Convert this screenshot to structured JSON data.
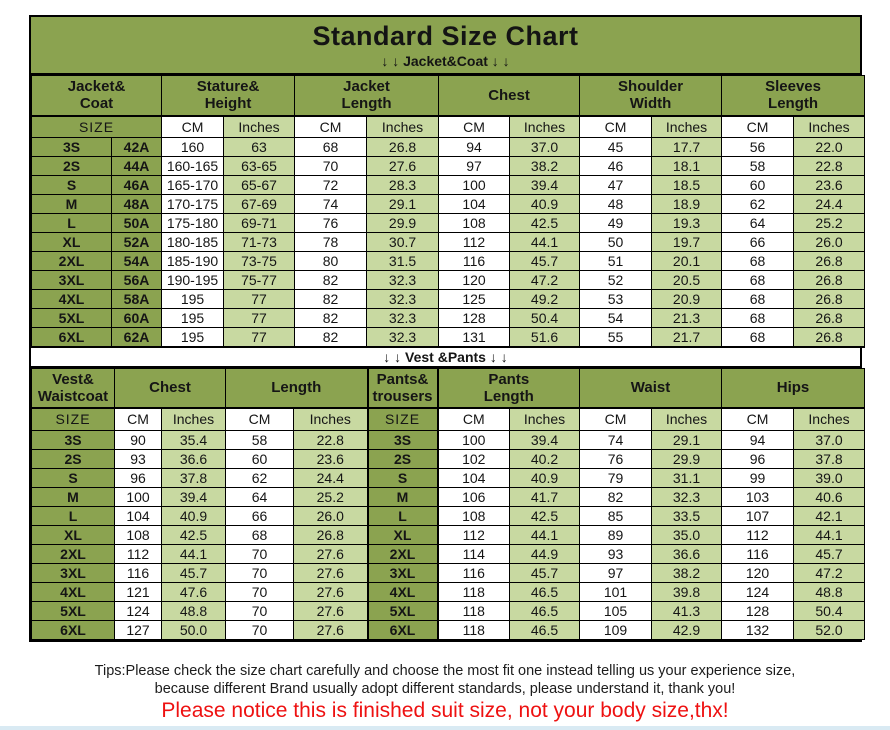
{
  "page": {
    "title": "Standard Size Chart",
    "jacket_divider": "↓ ↓  Jacket&Coat ↓ ↓",
    "vest_divider": "↓ ↓  Vest &Pants ↓ ↓",
    "tips_line1": "Tips:Please check the size chart carefully and choose the most fit one instead telling us your experience size,",
    "tips_line2": "because different Brand usually adopt different standards, please understand it, thank you!",
    "notice": "Please notice this is finished suit size, not your body size,thx!"
  },
  "colors": {
    "header_green": "#8ba350",
    "cell_green": "#c8d9a1",
    "notice_red": "#ee1111",
    "bottom_strip_blue": "#d9eaf3"
  },
  "jacket_table": {
    "groups": [
      "Jacket&\nCoat",
      "Stature&\nHeight",
      "Jacket\nLength",
      "Chest",
      "Shoulder\nWidth",
      "Sleeves\nLength"
    ],
    "subheader": [
      "SIZE",
      "CM",
      "Inches",
      "CM",
      "Inches",
      "CM",
      "Inches",
      "CM",
      "Inches",
      "CM",
      "Inches"
    ],
    "rows": [
      [
        "3S",
        "42A",
        "160",
        "63",
        "68",
        "26.8",
        "94",
        "37.0",
        "45",
        "17.7",
        "56",
        "22.0"
      ],
      [
        "2S",
        "44A",
        "160-165",
        "63-65",
        "70",
        "27.6",
        "97",
        "38.2",
        "46",
        "18.1",
        "58",
        "22.8"
      ],
      [
        "S",
        "46A",
        "165-170",
        "65-67",
        "72",
        "28.3",
        "100",
        "39.4",
        "47",
        "18.5",
        "60",
        "23.6"
      ],
      [
        "M",
        "48A",
        "170-175",
        "67-69",
        "74",
        "29.1",
        "104",
        "40.9",
        "48",
        "18.9",
        "62",
        "24.4"
      ],
      [
        "L",
        "50A",
        "175-180",
        "69-71",
        "76",
        "29.9",
        "108",
        "42.5",
        "49",
        "19.3",
        "64",
        "25.2"
      ],
      [
        "XL",
        "52A",
        "180-185",
        "71-73",
        "78",
        "30.7",
        "112",
        "44.1",
        "50",
        "19.7",
        "66",
        "26.0"
      ],
      [
        "2XL",
        "54A",
        "185-190",
        "73-75",
        "80",
        "31.5",
        "116",
        "45.7",
        "51",
        "20.1",
        "68",
        "26.8"
      ],
      [
        "3XL",
        "56A",
        "190-195",
        "75-77",
        "82",
        "32.3",
        "120",
        "47.2",
        "52",
        "20.5",
        "68",
        "26.8"
      ],
      [
        "4XL",
        "58A",
        "195",
        "77",
        "82",
        "32.3",
        "125",
        "49.2",
        "53",
        "20.9",
        "68",
        "26.8"
      ],
      [
        "5XL",
        "60A",
        "195",
        "77",
        "82",
        "32.3",
        "128",
        "50.4",
        "54",
        "21.3",
        "68",
        "26.8"
      ],
      [
        "6XL",
        "62A",
        "195",
        "77",
        "82",
        "32.3",
        "131",
        "51.6",
        "55",
        "21.7",
        "68",
        "26.8"
      ]
    ]
  },
  "vest_table": {
    "groups": [
      "Vest&\nWaistcoat",
      "Chest",
      "Length",
      "Pants&\ntrousers",
      "Pants\nLength",
      "Waist",
      "Hips"
    ],
    "subheader": [
      "SIZE",
      "CM",
      "Inches",
      "CM",
      "Inches",
      "SIZE",
      "CM",
      "Inches",
      "CM",
      "Inches",
      "CM",
      "Inches"
    ],
    "rows": [
      [
        "3S",
        "90",
        "35.4",
        "58",
        "22.8",
        "3S",
        "100",
        "39.4",
        "74",
        "29.1",
        "94",
        "37.0"
      ],
      [
        "2S",
        "93",
        "36.6",
        "60",
        "23.6",
        "2S",
        "102",
        "40.2",
        "76",
        "29.9",
        "96",
        "37.8"
      ],
      [
        "S",
        "96",
        "37.8",
        "62",
        "24.4",
        "S",
        "104",
        "40.9",
        "79",
        "31.1",
        "99",
        "39.0"
      ],
      [
        "M",
        "100",
        "39.4",
        "64",
        "25.2",
        "M",
        "106",
        "41.7",
        "82",
        "32.3",
        "103",
        "40.6"
      ],
      [
        "L",
        "104",
        "40.9",
        "66",
        "26.0",
        "L",
        "108",
        "42.5",
        "85",
        "33.5",
        "107",
        "42.1"
      ],
      [
        "XL",
        "108",
        "42.5",
        "68",
        "26.8",
        "XL",
        "112",
        "44.1",
        "89",
        "35.0",
        "112",
        "44.1"
      ],
      [
        "2XL",
        "112",
        "44.1",
        "70",
        "27.6",
        "2XL",
        "114",
        "44.9",
        "93",
        "36.6",
        "116",
        "45.7"
      ],
      [
        "3XL",
        "116",
        "45.7",
        "70",
        "27.6",
        "3XL",
        "116",
        "45.7",
        "97",
        "38.2",
        "120",
        "47.2"
      ],
      [
        "4XL",
        "121",
        "47.6",
        "70",
        "27.6",
        "4XL",
        "118",
        "46.5",
        "101",
        "39.8",
        "124",
        "48.8"
      ],
      [
        "5XL",
        "124",
        "48.8",
        "70",
        "27.6",
        "5XL",
        "118",
        "46.5",
        "105",
        "41.3",
        "128",
        "50.4"
      ],
      [
        "6XL",
        "127",
        "50.0",
        "70",
        "27.6",
        "6XL",
        "118",
        "46.5",
        "109",
        "42.9",
        "132",
        "52.0"
      ]
    ]
  }
}
